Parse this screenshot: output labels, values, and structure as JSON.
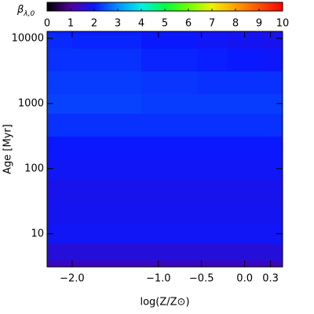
{
  "chart_data": {
    "type": "heatmap",
    "colorbar_label": "β",
    "colorbar_label_sub": "λ,0",
    "xlabel": "log(Z/Z⊙)",
    "ylabel": "Age [Myr]",
    "x": [
      -2.3,
      -1.7,
      -0.7,
      -0.4,
      0.0,
      0.4
    ],
    "y": [
      3,
      5,
      10,
      20,
      50,
      100,
      200,
      500,
      1000,
      2000,
      5000,
      10000,
      13000
    ],
    "z": [
      [
        1.3,
        1.3,
        1.3,
        1.3,
        1.3,
        1.3
      ],
      [
        1.6,
        1.6,
        1.6,
        1.6,
        1.6,
        1.6
      ],
      [
        1.9,
        1.9,
        1.9,
        1.9,
        1.9,
        1.9
      ],
      [
        1.85,
        1.85,
        1.85,
        1.85,
        1.85,
        1.85
      ],
      [
        1.8,
        1.8,
        1.8,
        1.8,
        1.8,
        1.8
      ],
      [
        1.9,
        1.9,
        1.9,
        1.9,
        1.9,
        1.9
      ],
      [
        2.0,
        2.0,
        2.0,
        2.0,
        2.0,
        2.0
      ],
      [
        2.2,
        2.2,
        2.2,
        2.2,
        2.2,
        2.2
      ],
      [
        2.35,
        2.35,
        2.3,
        2.3,
        2.3,
        2.3
      ],
      [
        2.3,
        2.3,
        2.25,
        2.2,
        2.2,
        2.2
      ],
      [
        2.2,
        2.2,
        2.1,
        2.05,
        2.0,
        1.95
      ],
      [
        2.15,
        2.1,
        2.0,
        1.9,
        1.85,
        1.8
      ],
      [
        2.1,
        2.05,
        1.95,
        1.85,
        1.8,
        1.75
      ]
    ],
    "xlim": [
      -2.29,
      0.44
    ],
    "xticks": [
      {
        "value": -2,
        "label": "−2.0"
      },
      {
        "value": -1,
        "label": "−1.0"
      },
      {
        "value": -0.5,
        "label": "−0.5"
      },
      {
        "value": 0,
        "label": "0.0"
      },
      0.3
    ],
    "ylim": [
      3.1,
      12800
    ],
    "ylog": true,
    "yticks": [
      10,
      100,
      1000,
      10000
    ],
    "clim": [
      0,
      10
    ],
    "cticks": [
      0,
      1,
      2,
      3,
      4,
      5,
      6,
      7,
      8,
      9,
      10
    ],
    "colormap": [
      "#000000",
      "#5000a0",
      "#0a18ff",
      "#0090ff",
      "#00f0e8",
      "#00ff40",
      "#70ff00",
      "#f0f000",
      "#ffa000",
      "#ff5000",
      "#ff0000"
    ]
  }
}
